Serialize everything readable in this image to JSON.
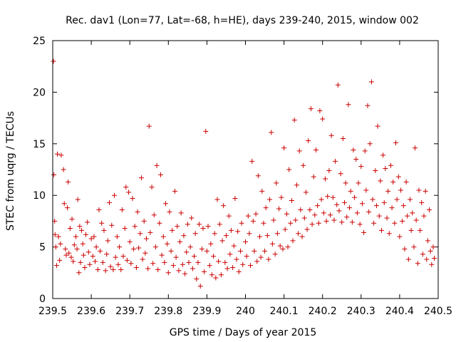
{
  "chart_data": {
    "type": "scatter",
    "title": "Rec. dav1 (Lon=77, Lat=-68, h=HE), days 239-240, 2015, window 002",
    "xlabel": "GPS time / Days of year 2015",
    "ylabel": "STEC from uqrg / TECUs",
    "xlim": [
      239.5,
      240.5
    ],
    "ylim": [
      0,
      25
    ],
    "xticks": [
      239.5,
      239.6,
      239.7,
      239.8,
      239.9,
      240,
      240.1,
      240.2,
      240.3,
      240.4,
      240.5
    ],
    "xtick_labels": [
      "239.5",
      "239.6",
      "239.7",
      "239.8",
      "239.9",
      "240",
      "240.1",
      "240.2",
      "240.3",
      "240.4",
      "240.5"
    ],
    "yticks": [
      0,
      5,
      10,
      15,
      20,
      25
    ],
    "ytick_labels": [
      "0",
      "5",
      "10",
      "15",
      "20",
      "25"
    ],
    "grid": false,
    "marker": "+",
    "color": "#cc0000",
    "series": [
      {
        "name": "",
        "points": [
          [
            239.502,
            23.0
          ],
          [
            239.503,
            12.0
          ],
          [
            239.505,
            7.5
          ],
          [
            239.506,
            6.2
          ],
          [
            239.508,
            5.0
          ],
          [
            239.51,
            3.2
          ],
          [
            239.512,
            14.0
          ],
          [
            239.515,
            6.0
          ],
          [
            239.518,
            3.7
          ],
          [
            239.52,
            5.3
          ],
          [
            239.522,
            13.9
          ],
          [
            239.528,
            12.5
          ],
          [
            239.53,
            9.2
          ],
          [
            239.533,
            4.8
          ],
          [
            239.535,
            4.2
          ],
          [
            239.538,
            8.8
          ],
          [
            239.54,
            11.3
          ],
          [
            239.542,
            4.4
          ],
          [
            239.545,
            6.8
          ],
          [
            239.548,
            4.0
          ],
          [
            239.55,
            7.7
          ],
          [
            239.553,
            3.6
          ],
          [
            239.556,
            5.2
          ],
          [
            239.56,
            6.0
          ],
          [
            239.563,
            4.8
          ],
          [
            239.565,
            9.6
          ],
          [
            239.568,
            2.5
          ],
          [
            239.57,
            7.0
          ],
          [
            239.572,
            3.5
          ],
          [
            239.575,
            6.6
          ],
          [
            239.578,
            5.3
          ],
          [
            239.58,
            4.2
          ],
          [
            239.583,
            3.0
          ],
          [
            239.586,
            6.2
          ],
          [
            239.59,
            7.4
          ],
          [
            239.593,
            4.5
          ],
          [
            239.596,
            3.3
          ],
          [
            239.6,
            5.8
          ],
          [
            239.604,
            4.1
          ],
          [
            239.607,
            6.0
          ],
          [
            239.61,
            3.6
          ],
          [
            239.613,
            5.0
          ],
          [
            239.617,
            2.8
          ],
          [
            239.62,
            8.6
          ],
          [
            239.623,
            4.6
          ],
          [
            239.627,
            7.3
          ],
          [
            239.63,
            3.5
          ],
          [
            239.633,
            6.6
          ],
          [
            239.637,
            2.7
          ],
          [
            239.64,
            4.3
          ],
          [
            239.643,
            5.6
          ],
          [
            239.647,
            9.3
          ],
          [
            239.65,
            3.1
          ],
          [
            239.653,
            7.1
          ],
          [
            239.657,
            2.8
          ],
          [
            239.66,
            10.0
          ],
          [
            239.663,
            4.0
          ],
          [
            239.667,
            6.0
          ],
          [
            239.67,
            3.3
          ],
          [
            239.673,
            5.0
          ],
          [
            239.677,
            2.8
          ],
          [
            239.68,
            8.6
          ],
          [
            239.683,
            4.1
          ],
          [
            239.687,
            6.8
          ],
          [
            239.69,
            10.8
          ],
          [
            239.693,
            3.7
          ],
          [
            239.697,
            10.3
          ],
          [
            239.7,
            5.5
          ],
          [
            239.703,
            3.4
          ],
          [
            239.707,
            9.7
          ],
          [
            239.71,
            4.8
          ],
          [
            239.713,
            7.0
          ],
          [
            239.717,
            3.0
          ],
          [
            239.72,
            8.4
          ],
          [
            239.723,
            4.9
          ],
          [
            239.727,
            6.3
          ],
          [
            239.73,
            11.7
          ],
          [
            239.733,
            3.8
          ],
          [
            239.737,
            7.5
          ],
          [
            239.74,
            4.4
          ],
          [
            239.743,
            5.8
          ],
          [
            239.747,
            2.9
          ],
          [
            239.75,
            16.7
          ],
          [
            239.753,
            6.4
          ],
          [
            239.757,
            10.8
          ],
          [
            239.76,
            3.4
          ],
          [
            239.763,
            8.1
          ],
          [
            239.767,
            5.0
          ],
          [
            239.77,
            12.9
          ],
          [
            239.773,
            2.8
          ],
          [
            239.777,
            7.3
          ],
          [
            239.78,
            12.0
          ],
          [
            239.783,
            4.2
          ],
          [
            239.787,
            6.0
          ],
          [
            239.79,
            3.5
          ],
          [
            239.793,
            9.2
          ],
          [
            239.797,
            5.3
          ],
          [
            239.8,
            2.5
          ],
          [
            239.803,
            8.4
          ],
          [
            239.807,
            4.6
          ],
          [
            239.81,
            6.6
          ],
          [
            239.813,
            3.2
          ],
          [
            239.817,
            10.4
          ],
          [
            239.82,
            4.0
          ],
          [
            239.823,
            7.0
          ],
          [
            239.827,
            2.7
          ],
          [
            239.83,
            5.5
          ],
          [
            239.833,
            8.3
          ],
          [
            239.837,
            3.3
          ],
          [
            239.84,
            6.1
          ],
          [
            239.843,
            2.4
          ],
          [
            239.847,
            4.5
          ],
          [
            239.85,
            7.2
          ],
          [
            239.853,
            3.5
          ],
          [
            239.857,
            5.0
          ],
          [
            239.86,
            7.8
          ],
          [
            239.863,
            2.9
          ],
          [
            239.867,
            4.1
          ],
          [
            239.87,
            6.3
          ],
          [
            239.873,
            1.9
          ],
          [
            239.877,
            3.5
          ],
          [
            239.88,
            7.2
          ],
          [
            239.883,
            1.2
          ],
          [
            239.887,
            4.8
          ],
          [
            239.89,
            6.8
          ],
          [
            239.893,
            2.6
          ],
          [
            239.897,
            16.2
          ],
          [
            239.9,
            4.6
          ],
          [
            239.903,
            7.0
          ],
          [
            239.907,
            3.2
          ],
          [
            239.91,
            5.3
          ],
          [
            239.913,
            2.3
          ],
          [
            239.917,
            4.1
          ],
          [
            239.92,
            6.3
          ],
          [
            239.923,
            2.0
          ],
          [
            239.927,
            9.6
          ],
          [
            239.93,
            3.6
          ],
          [
            239.933,
            7.2
          ],
          [
            239.937,
            2.3
          ],
          [
            239.94,
            5.6
          ],
          [
            239.943,
            9.0
          ],
          [
            239.947,
            3.5
          ],
          [
            239.95,
            6.1
          ],
          [
            239.953,
            2.9
          ],
          [
            239.957,
            8.0
          ],
          [
            239.96,
            4.3
          ],
          [
            239.963,
            6.6
          ],
          [
            239.967,
            3.0
          ],
          [
            239.97,
            5.1
          ],
          [
            239.973,
            9.7
          ],
          [
            239.977,
            3.8
          ],
          [
            239.98,
            6.5
          ],
          [
            239.983,
            2.6
          ],
          [
            239.987,
            4.6
          ],
          [
            239.99,
            7.3
          ],
          [
            239.993,
            3.3
          ],
          [
            240.0,
            5.5
          ],
          [
            240.003,
            4.1
          ],
          [
            240.007,
            8.0
          ],
          [
            240.01,
            6.3
          ],
          [
            240.013,
            3.2
          ],
          [
            240.017,
            13.3
          ],
          [
            240.02,
            7.5
          ],
          [
            240.023,
            4.6
          ],
          [
            240.027,
            8.2
          ],
          [
            240.03,
            3.6
          ],
          [
            240.033,
            11.9
          ],
          [
            240.037,
            6.0
          ],
          [
            240.04,
            4.0
          ],
          [
            240.043,
            10.4
          ],
          [
            240.047,
            7.3
          ],
          [
            240.05,
            4.6
          ],
          [
            240.053,
            8.8
          ],
          [
            240.057,
            6.1
          ],
          [
            240.06,
            3.8
          ],
          [
            240.063,
            9.6
          ],
          [
            240.067,
            16.1
          ],
          [
            240.07,
            5.3
          ],
          [
            240.073,
            7.6
          ],
          [
            240.077,
            4.3
          ],
          [
            240.08,
            11.2
          ],
          [
            240.083,
            6.3
          ],
          [
            240.087,
            8.7
          ],
          [
            240.09,
            5.1
          ],
          [
            240.093,
            9.8
          ],
          [
            240.097,
            4.8
          ],
          [
            240.1,
            14.6
          ],
          [
            240.103,
            6.7
          ],
          [
            240.107,
            8.2
          ],
          [
            240.11,
            5.0
          ],
          [
            240.113,
            12.5
          ],
          [
            240.117,
            7.3
          ],
          [
            240.12,
            9.5
          ],
          [
            240.123,
            5.6
          ],
          [
            240.127,
            17.3
          ],
          [
            240.13,
            7.6
          ],
          [
            240.133,
            11.0
          ],
          [
            240.137,
            6.3
          ],
          [
            240.14,
            14.3
          ],
          [
            240.143,
            8.6
          ],
          [
            240.147,
            6.0
          ],
          [
            240.15,
            12.9
          ],
          [
            240.153,
            7.8
          ],
          [
            240.157,
            10.3
          ],
          [
            240.16,
            6.7
          ],
          [
            240.163,
            15.3
          ],
          [
            240.167,
            8.6
          ],
          [
            240.17,
            18.4
          ],
          [
            240.173,
            7.2
          ],
          [
            240.177,
            11.8
          ],
          [
            240.18,
            8.1
          ],
          [
            240.183,
            14.4
          ],
          [
            240.187,
            9.0
          ],
          [
            240.19,
            7.3
          ],
          [
            240.193,
            18.2
          ],
          [
            240.197,
            9.6
          ],
          [
            240.2,
            17.4
          ],
          [
            240.203,
            8.3
          ],
          [
            240.207,
            11.6
          ],
          [
            240.21,
            7.5
          ],
          [
            240.213,
            9.9
          ],
          [
            240.217,
            12.4
          ],
          [
            240.22,
            8.1
          ],
          [
            240.223,
            15.8
          ],
          [
            240.227,
            9.8
          ],
          [
            240.23,
            7.6
          ],
          [
            240.233,
            13.3
          ],
          [
            240.237,
            9.1
          ],
          [
            240.24,
            20.7
          ],
          [
            240.243,
            8.5
          ],
          [
            240.247,
            12.1
          ],
          [
            240.25,
            7.4
          ],
          [
            240.253,
            15.5
          ],
          [
            240.257,
            9.3
          ],
          [
            240.26,
            11.2
          ],
          [
            240.263,
            7.9
          ],
          [
            240.267,
            18.8
          ],
          [
            240.27,
            8.8
          ],
          [
            240.273,
            10.4
          ],
          [
            240.277,
            7.4
          ],
          [
            240.28,
            14.4
          ],
          [
            240.283,
            9.8
          ],
          [
            240.287,
            13.5
          ],
          [
            240.29,
            8.3
          ],
          [
            240.293,
            11.2
          ],
          [
            240.297,
            7.2
          ],
          [
            240.3,
            12.8
          ],
          [
            240.303,
            9.2
          ],
          [
            240.307,
            6.4
          ],
          [
            240.31,
            14.3
          ],
          [
            240.313,
            10.5
          ],
          [
            240.317,
            18.7
          ],
          [
            240.32,
            8.4
          ],
          [
            240.323,
            15.0
          ],
          [
            240.327,
            21.0
          ],
          [
            240.33,
            9.6
          ],
          [
            240.333,
            7.3
          ],
          [
            240.337,
            12.4
          ],
          [
            240.34,
            9.0
          ],
          [
            240.343,
            16.7
          ],
          [
            240.347,
            8.0
          ],
          [
            240.35,
            11.4
          ],
          [
            240.353,
            6.6
          ],
          [
            240.357,
            13.9
          ],
          [
            240.36,
            9.3
          ],
          [
            240.363,
            12.6
          ],
          [
            240.367,
            7.8
          ],
          [
            240.37,
            10.4
          ],
          [
            240.373,
            6.3
          ],
          [
            240.377,
            12.9
          ],
          [
            240.38,
            8.8
          ],
          [
            240.383,
            11.3
          ],
          [
            240.387,
            7.3
          ],
          [
            240.39,
            15.1
          ],
          [
            240.393,
            9.6
          ],
          [
            240.397,
            11.8
          ],
          [
            240.4,
            6.0
          ],
          [
            240.403,
            10.5
          ],
          [
            240.407,
            7.5
          ],
          [
            240.41,
            9.0
          ],
          [
            240.413,
            4.8
          ],
          [
            240.417,
            11.3
          ],
          [
            240.42,
            8.0
          ],
          [
            240.423,
            3.8
          ],
          [
            240.427,
            9.6
          ],
          [
            240.43,
            6.6
          ],
          [
            240.433,
            8.3
          ],
          [
            240.437,
            5.0
          ],
          [
            240.44,
            14.6
          ],
          [
            240.443,
            7.6
          ],
          [
            240.447,
            3.4
          ],
          [
            240.45,
            10.5
          ],
          [
            240.453,
            6.6
          ],
          [
            240.457,
            9.3
          ],
          [
            240.46,
            4.3
          ],
          [
            240.463,
            8.0
          ],
          [
            240.467,
            10.4
          ],
          [
            240.47,
            3.8
          ],
          [
            240.473,
            5.6
          ],
          [
            240.477,
            8.6
          ],
          [
            240.48,
            4.6
          ],
          [
            240.483,
            3.3
          ],
          [
            240.487,
            5.0
          ],
          [
            240.49,
            3.9
          ]
        ]
      }
    ]
  }
}
